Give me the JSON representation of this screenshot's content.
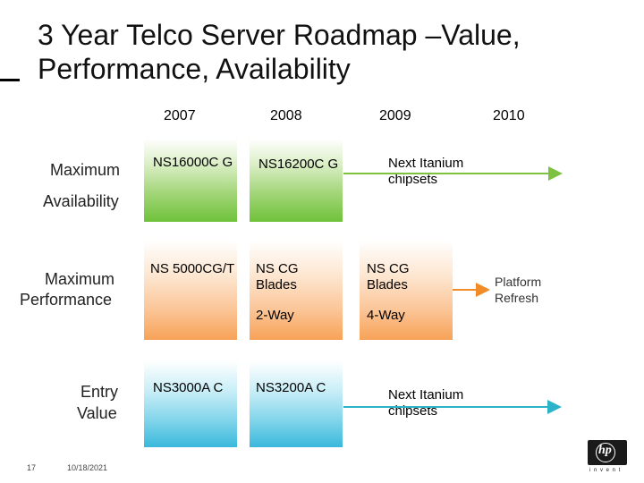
{
  "title": "3 Year Telco Server Roadmap –Value, Performance, Availability",
  "years": [
    "2007",
    "2008",
    "2009",
    "2010"
  ],
  "rows": {
    "availability": {
      "label_line1": "Maximum",
      "label_line2": "Availability",
      "box_2007": "NS16000C G",
      "box_2008": "NS16200C G",
      "next": "Next Itanium chipsets",
      "color": "#7dc142"
    },
    "performance": {
      "label_line1": "Maximum",
      "label_line2": "Performance",
      "box_2007": "NS 5000CG/T",
      "box_2008": "NS CG Blades",
      "box_2008_sub": "2-Way",
      "box_2009": "NS CG Blades",
      "box_2009_sub": "4-Way",
      "next": "Platform Refresh",
      "color": "#f28c28"
    },
    "entry": {
      "label_line1": "Entry",
      "label_line2": "Value",
      "box_2007": "NS3000A C",
      "box_2008": "NS3200A C",
      "next": "Next Itanium chipsets",
      "color": "#2bb3c9"
    }
  },
  "footer": {
    "page": "17",
    "date": "10/18/2021"
  },
  "logo": {
    "mark": "hp",
    "tagline": "i n v e n t"
  }
}
